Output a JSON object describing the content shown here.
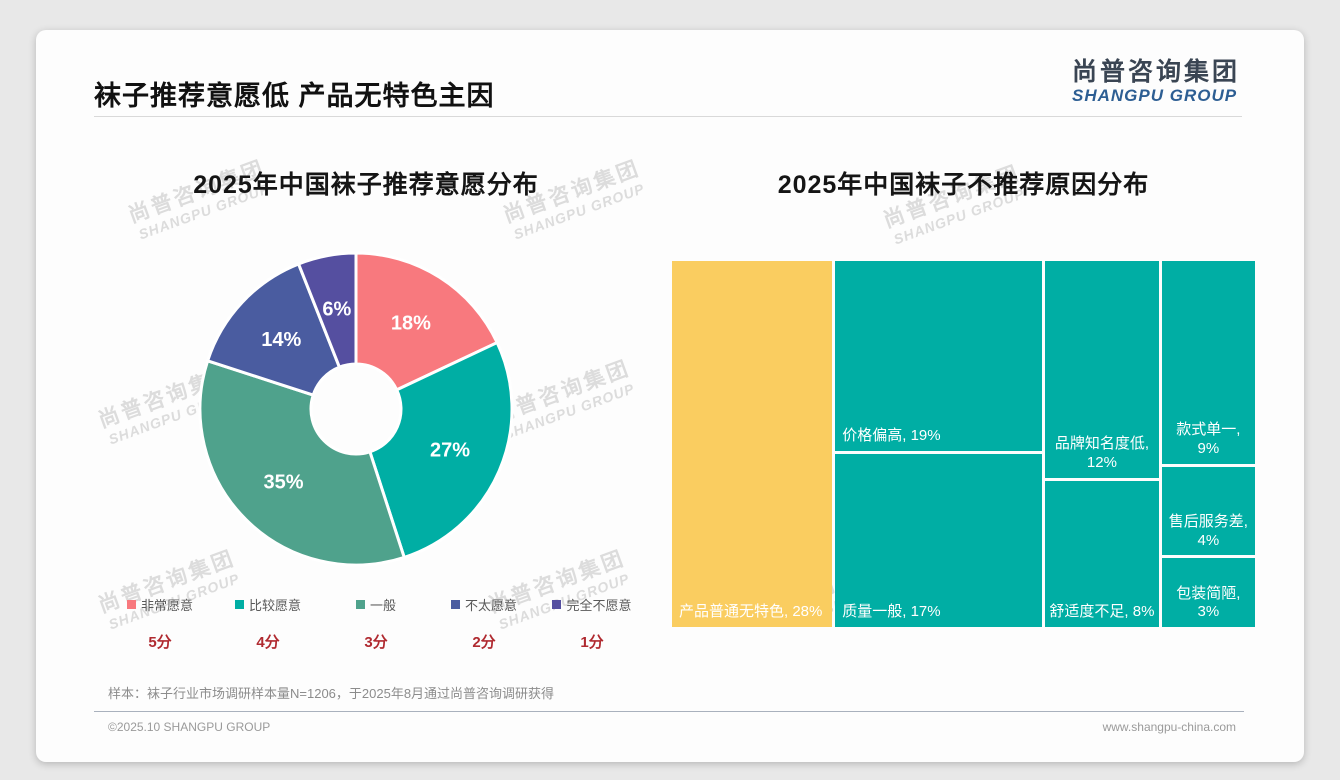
{
  "page": {
    "title": "袜子推荐意愿低 产品无特色主因",
    "logo": {
      "cn": "尚普咨询集团",
      "en": "SHANGPU GROUP"
    },
    "watermark": {
      "cn": "尚普咨询集团",
      "en": "SHANGPU GROUP"
    },
    "note": "样本：袜子行业市场调研样本量N=1206，于2025年8月通过尚普咨询调研获得",
    "footer": {
      "left": "©2025.10 SHANGPU GROUP",
      "right": "www.shangpu-china.com"
    }
  },
  "colors": {
    "accent_red_score": "#b02a30",
    "coral": "#f8797e",
    "teal": "#00aea4",
    "sea_green": "#4fa28c",
    "blue": "#4a5ca0",
    "purple": "#554fa0",
    "yellow": "#facd60"
  },
  "chart_data": [
    {
      "type": "pie",
      "title": "2025年中国袜子推荐意愿分布",
      "donut": true,
      "inner_radius_ratio": 0.29,
      "legend_position": "bottom",
      "slices": [
        {
          "label": "非常愿意",
          "score": "5分",
          "value": 18,
          "color": "#f8797e"
        },
        {
          "label": "比较愿意",
          "score": "4分",
          "value": 27,
          "color": "#00aea4"
        },
        {
          "label": "一般",
          "score": "3分",
          "value": 35,
          "color": "#4fa28c"
        },
        {
          "label": "不太愿意",
          "score": "2分",
          "value": 14,
          "color": "#4a5ca0"
        },
        {
          "label": "完全不愿意",
          "score": "1分",
          "value": 6,
          "color": "#554fa0"
        }
      ]
    },
    {
      "type": "treemap",
      "title": "2025年中国袜子不推荐原因分布",
      "cells": [
        {
          "label": "产品普通无特色",
          "value": 28,
          "color": "#facd60",
          "col": 0
        },
        {
          "label": "价格偏高",
          "value": 19,
          "color": "#00aea4",
          "col": 1
        },
        {
          "label": "质量一般",
          "value": 17,
          "color": "#00aea4",
          "col": 1
        },
        {
          "label": "品牌知名度低",
          "value": 12,
          "color": "#00aea4",
          "col": 2
        },
        {
          "label": "舒适度不足",
          "value": 8,
          "color": "#00aea4",
          "col": 2
        },
        {
          "label": "款式单一",
          "value": 9,
          "color": "#00aea4",
          "col": 3
        },
        {
          "label": "售后服务差",
          "value": 4,
          "color": "#00aea4",
          "col": 3
        },
        {
          "label": "包装简陋",
          "value": 3,
          "color": "#00aea4",
          "col": 3
        }
      ]
    }
  ]
}
